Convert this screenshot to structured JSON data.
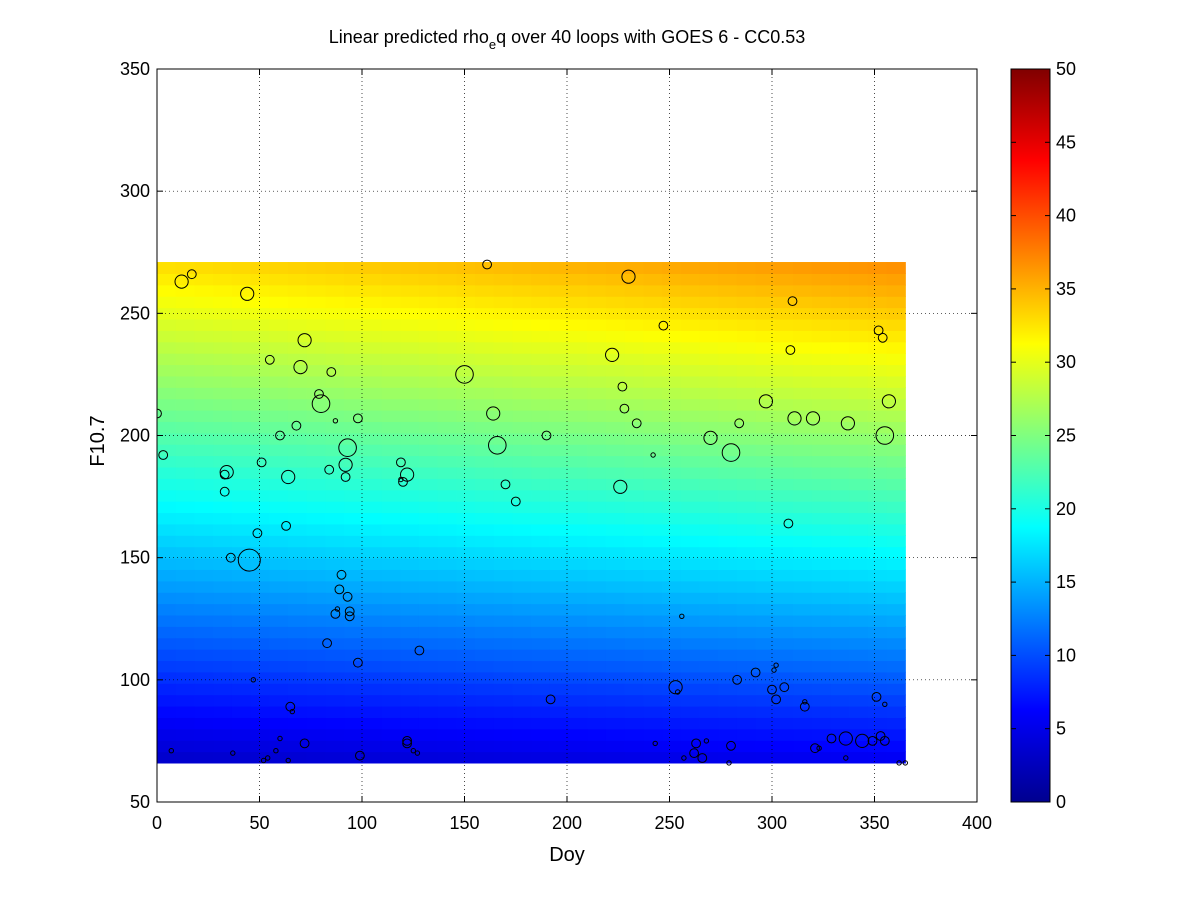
{
  "chart_data": {
    "type": "heatmap",
    "title": "Linear predicted rho",
    "title_sub": "e",
    "title_rest": "q over 40 loops with GOES 6 - CC0.53",
    "xlabel": "Doy",
    "ylabel": "F10.7",
    "xlim": [
      0,
      400
    ],
    "ylim": [
      50,
      350
    ],
    "xticks": [
      0,
      50,
      100,
      150,
      200,
      250,
      300,
      350,
      400
    ],
    "yticks": [
      50,
      100,
      150,
      200,
      250,
      300,
      350
    ],
    "grid": true,
    "colormap": "jet",
    "colorbar": {
      "min": 0,
      "max": 50,
      "ticks": [
        0,
        5,
        10,
        15,
        20,
        25,
        30,
        35,
        40,
        45,
        50
      ]
    },
    "surface": {
      "x_range": [
        0,
        365
      ],
      "y_range": [
        66,
        271
      ],
      "corner_values": {
        "x0_ylow": 3.5,
        "x365_ylow": 5.5,
        "x0_yhigh": 33,
        "x365_yhigh": 37
      }
    },
    "points": [
      [
        0,
        209,
        2
      ],
      [
        3,
        192,
        2
      ],
      [
        7,
        71,
        1
      ],
      [
        12,
        263,
        3
      ],
      [
        17,
        266,
        2
      ],
      [
        33,
        184,
        2
      ],
      [
        34,
        185,
        3
      ],
      [
        33,
        177,
        2
      ],
      [
        36,
        150,
        2
      ],
      [
        37,
        70,
        1
      ],
      [
        44,
        258,
        3
      ],
      [
        45,
        149,
        5
      ],
      [
        47,
        100,
        1
      ],
      [
        49,
        160,
        2
      ],
      [
        51,
        189,
        2
      ],
      [
        52,
        67,
        1
      ],
      [
        54,
        68,
        1
      ],
      [
        55,
        231,
        2
      ],
      [
        58,
        71,
        1
      ],
      [
        60,
        76,
        1
      ],
      [
        60,
        200,
        2
      ],
      [
        63,
        163,
        2
      ],
      [
        64,
        183,
        3
      ],
      [
        65,
        89,
        2
      ],
      [
        66,
        87,
        1
      ],
      [
        64,
        67,
        1
      ],
      [
        68,
        204,
        2
      ],
      [
        70,
        228,
        3
      ],
      [
        72,
        239,
        3
      ],
      [
        72,
        74,
        2
      ],
      [
        79,
        217,
        2
      ],
      [
        80,
        213,
        4
      ],
      [
        83,
        115,
        2
      ],
      [
        84,
        186,
        2
      ],
      [
        85,
        226,
        2
      ],
      [
        87,
        206,
        1
      ],
      [
        87,
        127,
        2
      ],
      [
        88,
        129,
        1
      ],
      [
        89,
        137,
        2
      ],
      [
        90,
        143,
        2
      ],
      [
        92,
        183,
        2
      ],
      [
        92,
        188,
        3
      ],
      [
        93,
        134,
        2
      ],
      [
        93,
        195,
        4
      ],
      [
        94,
        126,
        2
      ],
      [
        94,
        128,
        2
      ],
      [
        98,
        107,
        2
      ],
      [
        98,
        207,
        2
      ],
      [
        99,
        69,
        2
      ],
      [
        119,
        189,
        2
      ],
      [
        119,
        182,
        1
      ],
      [
        120,
        181,
        2
      ],
      [
        122,
        184,
        3
      ],
      [
        122,
        75,
        2
      ],
      [
        122,
        74,
        2
      ],
      [
        125,
        71,
        1
      ],
      [
        127,
        70,
        1
      ],
      [
        128,
        112,
        2
      ],
      [
        150,
        225,
        4
      ],
      [
        161,
        270,
        2
      ],
      [
        164,
        209,
        3
      ],
      [
        166,
        196,
        4
      ],
      [
        170,
        180,
        2
      ],
      [
        175,
        173,
        2
      ],
      [
        190,
        200,
        2
      ],
      [
        192,
        92,
        2
      ],
      [
        222,
        233,
        3
      ],
      [
        226,
        179,
        3
      ],
      [
        227,
        220,
        2
      ],
      [
        228,
        211,
        2
      ],
      [
        230,
        265,
        3
      ],
      [
        234,
        205,
        2
      ],
      [
        242,
        192,
        1
      ],
      [
        243,
        74,
        1
      ],
      [
        247,
        245,
        2
      ],
      [
        253,
        97,
        3
      ],
      [
        254,
        95,
        1
      ],
      [
        256,
        126,
        1
      ],
      [
        257,
        68,
        1
      ],
      [
        262,
        70,
        2
      ],
      [
        263,
        74,
        2
      ],
      [
        266,
        68,
        2
      ],
      [
        268,
        75,
        1
      ],
      [
        270,
        199,
        3
      ],
      [
        279,
        66,
        1
      ],
      [
        280,
        73,
        2
      ],
      [
        280,
        193,
        4
      ],
      [
        283,
        100,
        2
      ],
      [
        284,
        205,
        2
      ],
      [
        292,
        103,
        2
      ],
      [
        297,
        214,
        3
      ],
      [
        300,
        96,
        2
      ],
      [
        301,
        104,
        1
      ],
      [
        302,
        106,
        1
      ],
      [
        302,
        92,
        2
      ],
      [
        306,
        97,
        2
      ],
      [
        308,
        164,
        2
      ],
      [
        309,
        235,
        2
      ],
      [
        310,
        255,
        2
      ],
      [
        311,
        207,
        3
      ],
      [
        316,
        91,
        1
      ],
      [
        316,
        89,
        2
      ],
      [
        320,
        207,
        3
      ],
      [
        321,
        72,
        2
      ],
      [
        323,
        72,
        1
      ],
      [
        329,
        76,
        2
      ],
      [
        336,
        76,
        3
      ],
      [
        336,
        68,
        1
      ],
      [
        337,
        205,
        3
      ],
      [
        344,
        75,
        3
      ],
      [
        349,
        75,
        2
      ],
      [
        351,
        93,
        2
      ],
      [
        352,
        243,
        2
      ],
      [
        353,
        77,
        2
      ],
      [
        354,
        240,
        2
      ],
      [
        355,
        75,
        2
      ],
      [
        355,
        90,
        1
      ],
      [
        355,
        200,
        4
      ],
      [
        357,
        214,
        3
      ],
      [
        362,
        66,
        1
      ],
      [
        365,
        66,
        1
      ]
    ]
  }
}
